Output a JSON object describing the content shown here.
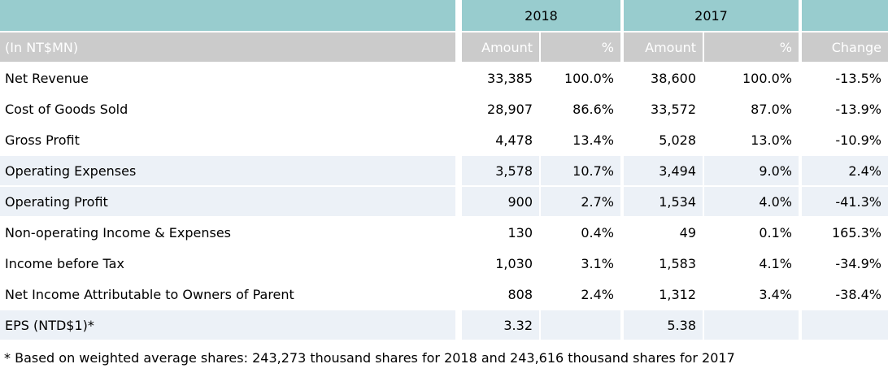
{
  "chart_data": {
    "type": "table",
    "unit_label": "(In NT$MN)",
    "year_headers": [
      "2018",
      "2017"
    ],
    "col_headers": [
      "Amount",
      "%",
      "Amount",
      "%",
      "Change"
    ],
    "rows": [
      {
        "label": "Net Revenue",
        "a18": "33,385",
        "p18": "100.0%",
        "a17": "38,600",
        "p17": "100.0%",
        "chg": "-13.5%"
      },
      {
        "label": "Cost of Goods Sold",
        "a18": "28,907",
        "p18": "86.6%",
        "a17": "33,572",
        "p17": "87.0%",
        "chg": "-13.9%"
      },
      {
        "label": "Gross Profit",
        "a18": "4,478",
        "p18": "13.4%",
        "a17": "5,028",
        "p17": "13.0%",
        "chg": "-10.9%"
      },
      {
        "label": "Operating Expenses",
        "a18": "3,578",
        "p18": "10.7%",
        "a17": "3,494",
        "p17": "9.0%",
        "chg": "2.4%"
      },
      {
        "label": "Operating Profit",
        "a18": "900",
        "p18": "2.7%",
        "a17": "1,534",
        "p17": "4.0%",
        "chg": "-41.3%"
      },
      {
        "label": "Non-operating Income & Expenses",
        "a18": "130",
        "p18": "0.4%",
        "a17": "49",
        "p17": "0.1%",
        "chg": "165.3%"
      },
      {
        "label": "Income before Tax",
        "a18": "1,030",
        "p18": "3.1%",
        "a17": "1,583",
        "p17": "4.1%",
        "chg": "-34.9%"
      },
      {
        "label": "Net Income Attributable to Owners of Parent",
        "a18": "808",
        "p18": "2.4%",
        "a17": "1,312",
        "p17": "3.4%",
        "chg": "-38.4%"
      },
      {
        "label": "EPS (NTD$1)*",
        "a18": "3.32",
        "p18": "",
        "a17": "5.38",
        "p17": "",
        "chg": ""
      }
    ],
    "footnote": "* Based on weighted average shares: 243,273 thousand shares for 2018 and 243,616 thousand shares for 2017"
  },
  "colors": {
    "year_band": "#98CCCE",
    "header_band": "#CBCBCB",
    "highlight_row": "#ECF1F7",
    "header_text": "#FFFFFF",
    "body_text": "#000000"
  }
}
